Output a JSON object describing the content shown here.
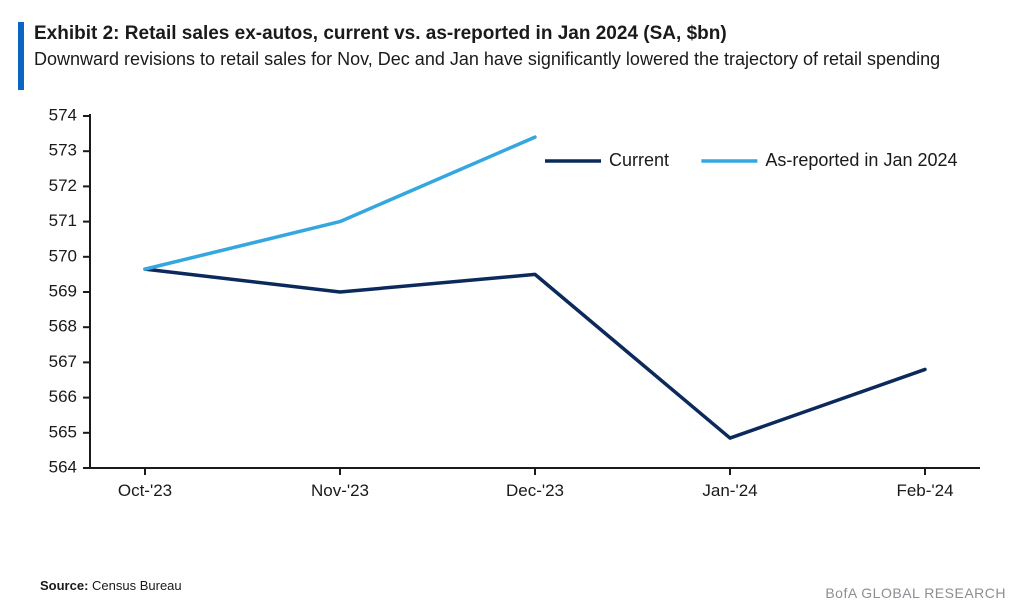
{
  "header": {
    "bar_color": "#0a66c2",
    "title": "Exhibit 2: Retail sales ex-autos, current vs. as-reported in Jan 2024 (SA, $bn)",
    "subtitle": "Downward revisions to retail sales for Nov, Dec and Jan have significantly lowered the trajectory of retail spending"
  },
  "chart": {
    "type": "line",
    "background_color": "#ffffff",
    "axis_color": "#1a1a1a",
    "axis_stroke_width": 2,
    "tick_length": 7,
    "tick_stroke_width": 2,
    "label_fontsize": 17,
    "ylim": [
      564,
      574
    ],
    "ytick_step": 1,
    "yticks": [
      564,
      565,
      566,
      567,
      568,
      569,
      570,
      571,
      572,
      573,
      574
    ],
    "x_categories": [
      "Oct-'23",
      "Nov-'23",
      "Dec-'23",
      "Jan-'24",
      "Feb-'24"
    ],
    "series": [
      {
        "name": "Current",
        "color": "#0b2a5b",
        "stroke_width": 3.5,
        "x": [
          "Oct-'23",
          "Nov-'23",
          "Dec-'23",
          "Jan-'24",
          "Feb-'24"
        ],
        "y": [
          569.65,
          569.0,
          569.5,
          564.85,
          566.8
        ]
      },
      {
        "name": "As-reported in Jan 2024",
        "color": "#35a7e0",
        "stroke_width": 3.5,
        "x": [
          "Oct-'23",
          "Nov-'23",
          "Dec-'23"
        ],
        "y": [
          569.65,
          571.0,
          573.4
        ]
      }
    ],
    "legend": {
      "items": [
        {
          "label": "Current",
          "color": "#0b2a5b"
        },
        {
          "label": "As-reported in Jan 2024",
          "color": "#35a7e0"
        }
      ],
      "fontsize": 18,
      "line_length": 56,
      "line_stroke_width": 3.5
    }
  },
  "footer": {
    "source_label": "Source:",
    "source_value": "Census Bureau",
    "attribution": "BofA GLOBAL RESEARCH",
    "attribution_color": "#8a8f94"
  }
}
